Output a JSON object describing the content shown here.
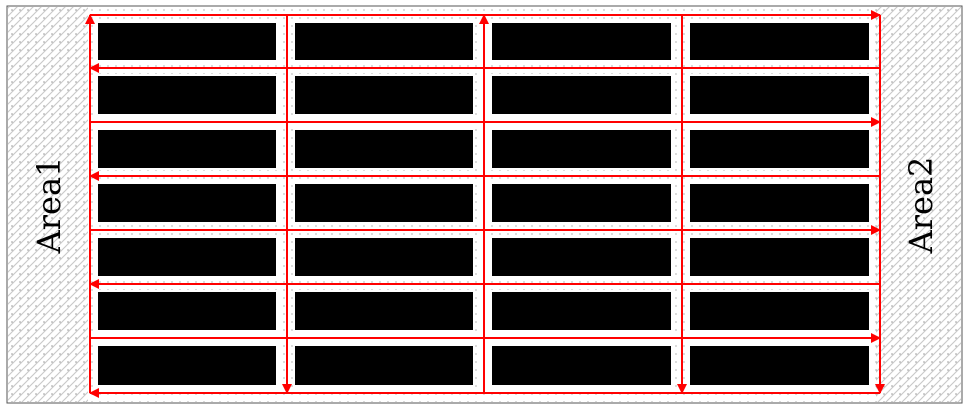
{
  "areas": {
    "left_label": "Area1",
    "right_label": "Area2"
  },
  "grid": {
    "rows": 7,
    "columns": 4
  },
  "colors": {
    "block": "#000000",
    "aisle_path": "#ff0000",
    "area_hatch": "#c8c8c8",
    "border": "#555555",
    "background": "#ffffff"
  },
  "horizontal_flows": [
    "right",
    "left",
    "right",
    "left",
    "right",
    "left",
    "right",
    "left"
  ],
  "vertical_flows": [
    "up",
    "down",
    "up",
    "down",
    "down"
  ]
}
